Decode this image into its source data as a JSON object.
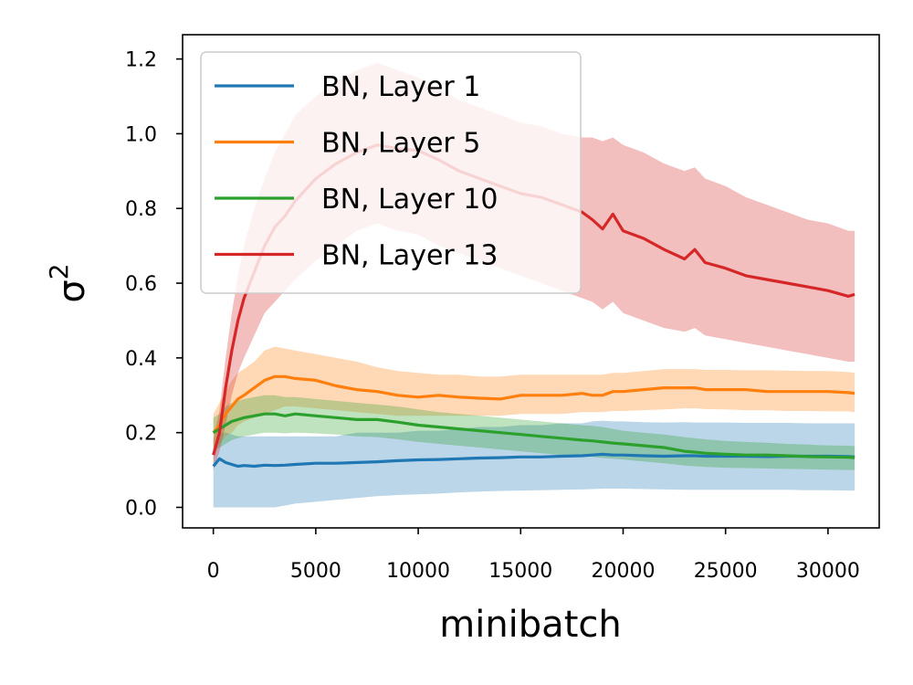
{
  "chart_data": {
    "type": "line",
    "title": "",
    "xlabel": "minibatch",
    "ylabel": "σ",
    "ylabel_superscript": "2",
    "xlim": [
      -1500,
      32500
    ],
    "ylim": [
      -0.055,
      1.265
    ],
    "xticks": [
      0,
      5000,
      10000,
      15000,
      20000,
      25000,
      30000
    ],
    "xtick_labels": [
      "0",
      "5000",
      "10000",
      "15000",
      "20000",
      "25000",
      "30000"
    ],
    "yticks": [
      0.0,
      0.2,
      0.4,
      0.6,
      0.8,
      1.0,
      1.2
    ],
    "ytick_labels": [
      "0.0",
      "0.2",
      "0.4",
      "0.6",
      "0.8",
      "1.0",
      "1.2"
    ],
    "grid": false,
    "legend_position": "top-left",
    "x": [
      0,
      300,
      600,
      900,
      1200,
      1500,
      2000,
      2500,
      3000,
      3500,
      4000,
      5000,
      6000,
      7000,
      8000,
      9000,
      10000,
      11000,
      12000,
      13000,
      14000,
      15000,
      16000,
      17000,
      18000,
      18500,
      19000,
      19500,
      20000,
      21000,
      22000,
      23000,
      23500,
      24000,
      25000,
      26000,
      27000,
      28000,
      29000,
      30000,
      31000,
      31300
    ],
    "series": [
      {
        "name": "BN, Layer 1",
        "color": "#1f77b4",
        "values": [
          0.11,
          0.13,
          0.12,
          0.115,
          0.11,
          0.112,
          0.11,
          0.113,
          0.112,
          0.113,
          0.115,
          0.118,
          0.118,
          0.12,
          0.122,
          0.125,
          0.127,
          0.128,
          0.13,
          0.132,
          0.133,
          0.135,
          0.135,
          0.137,
          0.138,
          0.14,
          0.142,
          0.14,
          0.14,
          0.138,
          0.137,
          0.138,
          0.138,
          0.137,
          0.137,
          0.137,
          0.136,
          0.137,
          0.137,
          0.137,
          0.136,
          0.135
        ],
        "band_lower": [
          0.0,
          0.0,
          0.0,
          0.0,
          0.0,
          0.0,
          0.0,
          0.0,
          0.0,
          0.005,
          0.01,
          0.015,
          0.02,
          0.025,
          0.03,
          0.033,
          0.035,
          0.037,
          0.04,
          0.042,
          0.044,
          0.045,
          0.046,
          0.047,
          0.048,
          0.049,
          0.05,
          0.05,
          0.05,
          0.049,
          0.048,
          0.047,
          0.047,
          0.047,
          0.047,
          0.047,
          0.047,
          0.047,
          0.046,
          0.046,
          0.045,
          0.045
        ],
        "band_upper": [
          0.15,
          0.2,
          0.2,
          0.195,
          0.19,
          0.19,
          0.19,
          0.19,
          0.19,
          0.19,
          0.19,
          0.19,
          0.19,
          0.2,
          0.2,
          0.2,
          0.205,
          0.205,
          0.21,
          0.215,
          0.215,
          0.22,
          0.22,
          0.225,
          0.225,
          0.23,
          0.232,
          0.23,
          0.23,
          0.228,
          0.227,
          0.228,
          0.227,
          0.227,
          0.227,
          0.226,
          0.226,
          0.226,
          0.225,
          0.225,
          0.225,
          0.225
        ]
      },
      {
        "name": "BN, Layer 5",
        "color": "#ff7f0e",
        "values": [
          0.2,
          0.22,
          0.25,
          0.27,
          0.29,
          0.3,
          0.32,
          0.34,
          0.35,
          0.35,
          0.345,
          0.34,
          0.325,
          0.315,
          0.31,
          0.3,
          0.295,
          0.3,
          0.295,
          0.292,
          0.29,
          0.3,
          0.3,
          0.3,
          0.305,
          0.3,
          0.3,
          0.31,
          0.31,
          0.315,
          0.32,
          0.32,
          0.32,
          0.315,
          0.315,
          0.315,
          0.31,
          0.31,
          0.31,
          0.31,
          0.307,
          0.305
        ],
        "band_lower": [
          0.16,
          0.17,
          0.19,
          0.2,
          0.22,
          0.23,
          0.24,
          0.25,
          0.26,
          0.27,
          0.27,
          0.265,
          0.26,
          0.255,
          0.25,
          0.245,
          0.245,
          0.245,
          0.245,
          0.245,
          0.245,
          0.25,
          0.25,
          0.25,
          0.255,
          0.255,
          0.255,
          0.258,
          0.258,
          0.26,
          0.262,
          0.265,
          0.265,
          0.263,
          0.262,
          0.26,
          0.26,
          0.258,
          0.258,
          0.257,
          0.257,
          0.255
        ],
        "band_upper": [
          0.25,
          0.28,
          0.31,
          0.34,
          0.36,
          0.37,
          0.39,
          0.42,
          0.43,
          0.425,
          0.42,
          0.41,
          0.4,
          0.39,
          0.375,
          0.365,
          0.36,
          0.355,
          0.355,
          0.35,
          0.35,
          0.355,
          0.355,
          0.355,
          0.355,
          0.355,
          0.355,
          0.36,
          0.36,
          0.365,
          0.37,
          0.37,
          0.37,
          0.368,
          0.368,
          0.367,
          0.367,
          0.366,
          0.365,
          0.365,
          0.362,
          0.36
        ]
      },
      {
        "name": "BN, Layer 10",
        "color": "#2ca02c",
        "values": [
          0.2,
          0.21,
          0.22,
          0.23,
          0.235,
          0.24,
          0.245,
          0.25,
          0.25,
          0.245,
          0.25,
          0.245,
          0.24,
          0.235,
          0.235,
          0.228,
          0.22,
          0.215,
          0.21,
          0.205,
          0.2,
          0.195,
          0.19,
          0.185,
          0.18,
          0.178,
          0.175,
          0.172,
          0.17,
          0.165,
          0.16,
          0.15,
          0.148,
          0.145,
          0.142,
          0.14,
          0.14,
          0.138,
          0.136,
          0.135,
          0.134,
          0.133
        ],
        "band_lower": [
          0.15,
          0.16,
          0.17,
          0.18,
          0.185,
          0.19,
          0.195,
          0.2,
          0.2,
          0.198,
          0.2,
          0.198,
          0.195,
          0.19,
          0.188,
          0.182,
          0.175,
          0.17,
          0.165,
          0.16,
          0.155,
          0.15,
          0.145,
          0.14,
          0.138,
          0.135,
          0.132,
          0.13,
          0.128,
          0.123,
          0.118,
          0.112,
          0.11,
          0.108,
          0.106,
          0.105,
          0.104,
          0.103,
          0.102,
          0.101,
          0.1,
          0.1
        ],
        "band_upper": [
          0.24,
          0.25,
          0.27,
          0.28,
          0.285,
          0.29,
          0.295,
          0.3,
          0.3,
          0.295,
          0.295,
          0.29,
          0.285,
          0.28,
          0.275,
          0.27,
          0.262,
          0.255,
          0.25,
          0.245,
          0.24,
          0.235,
          0.23,
          0.225,
          0.22,
          0.218,
          0.215,
          0.21,
          0.205,
          0.2,
          0.195,
          0.188,
          0.185,
          0.182,
          0.178,
          0.175,
          0.173,
          0.17,
          0.168,
          0.166,
          0.165,
          0.164
        ]
      },
      {
        "name": "BN, Layer 13",
        "color": "#d62728",
        "values": [
          0.14,
          0.2,
          0.32,
          0.42,
          0.5,
          0.56,
          0.63,
          0.7,
          0.75,
          0.78,
          0.82,
          0.88,
          0.92,
          0.95,
          0.97,
          0.96,
          0.955,
          0.93,
          0.9,
          0.88,
          0.86,
          0.84,
          0.83,
          0.81,
          0.79,
          0.77,
          0.745,
          0.785,
          0.74,
          0.72,
          0.69,
          0.665,
          0.69,
          0.655,
          0.64,
          0.62,
          0.61,
          0.6,
          0.59,
          0.58,
          0.565,
          0.57
        ],
        "band_lower": [
          0.1,
          0.15,
          0.22,
          0.3,
          0.36,
          0.4,
          0.46,
          0.52,
          0.55,
          0.58,
          0.61,
          0.66,
          0.7,
          0.74,
          0.76,
          0.74,
          0.73,
          0.7,
          0.68,
          0.66,
          0.64,
          0.62,
          0.6,
          0.58,
          0.56,
          0.55,
          0.53,
          0.55,
          0.52,
          0.5,
          0.48,
          0.47,
          0.48,
          0.46,
          0.45,
          0.44,
          0.43,
          0.42,
          0.41,
          0.4,
          0.39,
          0.39
        ],
        "band_upper": [
          0.18,
          0.26,
          0.4,
          0.52,
          0.62,
          0.7,
          0.8,
          0.88,
          0.95,
          1.0,
          1.05,
          1.1,
          1.14,
          1.17,
          1.19,
          1.17,
          1.15,
          1.12,
          1.09,
          1.07,
          1.05,
          1.03,
          1.02,
          1.0,
          0.99,
          0.99,
          0.98,
          0.99,
          0.97,
          0.95,
          0.92,
          0.9,
          0.91,
          0.88,
          0.86,
          0.83,
          0.81,
          0.79,
          0.77,
          0.76,
          0.74,
          0.74
        ]
      }
    ]
  }
}
